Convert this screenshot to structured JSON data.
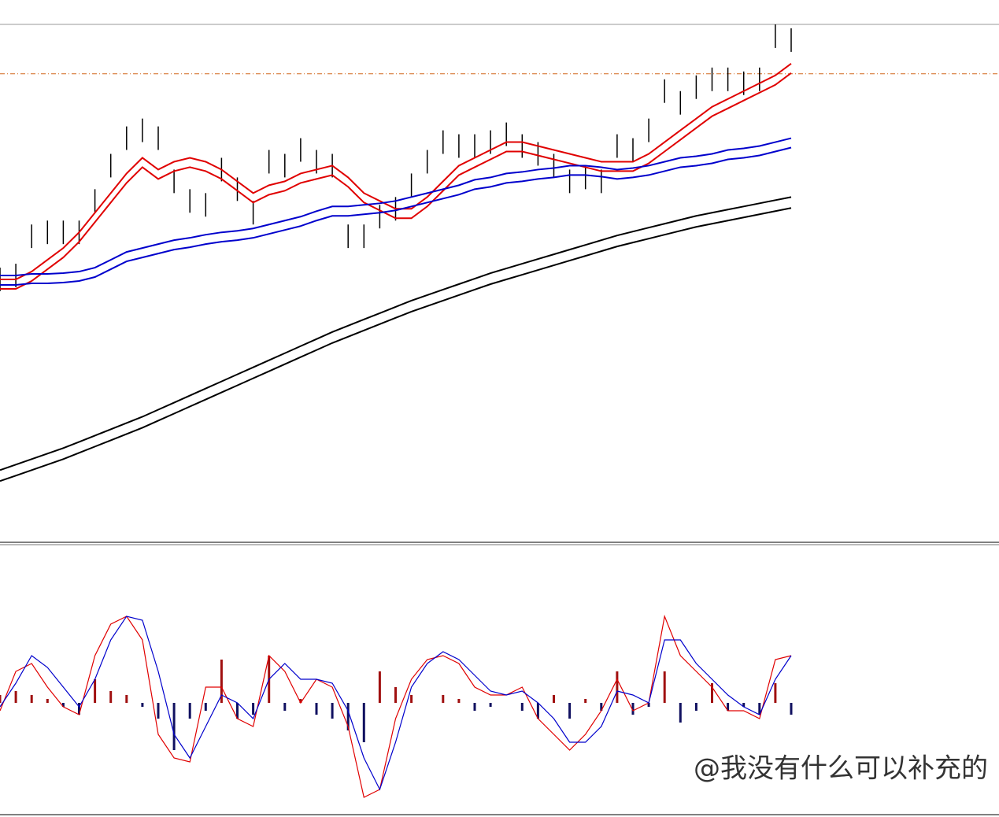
{
  "watermark": "@我没有什么可以补充的",
  "chart_data": [
    {
      "type": "price",
      "ylim": [
        0,
        660
      ],
      "bars": {
        "color": "#000000",
        "high": [
          350,
          355,
          405,
          410,
          410,
          410,
          450,
          495,
          530,
          540,
          530,
          475,
          450,
          445,
          490,
          465,
          435,
          500,
          495,
          515,
          500,
          495,
          405,
          405,
          430,
          440,
          470,
          500,
          525,
          520,
          520,
          525,
          535,
          520,
          510,
          495,
          475,
          480,
          475,
          520,
          515,
          540,
          590,
          575,
          595,
          605,
          605,
          600,
          605,
          660,
          655
        ],
        "low": [
          320,
          325,
          375,
          380,
          380,
          380,
          420,
          465,
          500,
          510,
          500,
          445,
          420,
          415,
          460,
          435,
          405,
          470,
          465,
          485,
          470,
          465,
          375,
          375,
          400,
          410,
          440,
          470,
          495,
          490,
          490,
          495,
          505,
          490,
          480,
          465,
          445,
          450,
          445,
          490,
          485,
          510,
          560,
          545,
          565,
          575,
          575,
          570,
          575,
          630,
          625
        ]
      },
      "series": [
        {
          "color": "#e00000",
          "values": [
            335,
            335,
            345,
            360,
            375,
            395,
            420,
            445,
            470,
            490,
            475,
            485,
            490,
            485,
            475,
            460,
            445,
            455,
            460,
            470,
            475,
            480,
            465,
            445,
            435,
            425,
            425,
            440,
            460,
            480,
            490,
            500,
            510,
            510,
            505,
            500,
            495,
            490,
            485,
            485,
            485,
            495,
            510,
            525,
            540,
            555,
            565,
            575,
            585,
            595,
            610
          ]
        },
        {
          "color": "#e00000",
          "values": [
            323,
            323,
            333,
            348,
            363,
            383,
            408,
            433,
            458,
            478,
            463,
            473,
            478,
            473,
            463,
            448,
            433,
            443,
            448,
            458,
            463,
            468,
            453,
            433,
            423,
            413,
            413,
            428,
            448,
            468,
            478,
            488,
            498,
            498,
            493,
            488,
            483,
            478,
            473,
            473,
            473,
            483,
            498,
            513,
            528,
            543,
            553,
            563,
            573,
            583,
            598
          ]
        },
        {
          "color": "#0000cc",
          "values": [
            340,
            340,
            342,
            342,
            343,
            345,
            350,
            360,
            370,
            375,
            380,
            385,
            388,
            392,
            395,
            397,
            400,
            405,
            410,
            415,
            422,
            428,
            428,
            430,
            432,
            435,
            440,
            445,
            450,
            455,
            462,
            465,
            470,
            472,
            475,
            477,
            480,
            480,
            478,
            475,
            477,
            480,
            485,
            490,
            492,
            495,
            500,
            502,
            505,
            510,
            515
          ]
        },
        {
          "color": "#0000cc",
          "values": [
            328,
            328,
            330,
            330,
            331,
            333,
            338,
            348,
            358,
            363,
            368,
            373,
            376,
            380,
            383,
            385,
            388,
            393,
            398,
            403,
            410,
            416,
            416,
            418,
            420,
            423,
            428,
            433,
            438,
            443,
            450,
            453,
            458,
            460,
            463,
            465,
            468,
            468,
            466,
            463,
            465,
            468,
            473,
            478,
            480,
            483,
            488,
            490,
            493,
            498,
            503
          ]
        },
        {
          "color": "#000000",
          "values": [
            92,
            99,
            106,
            113,
            120,
            128,
            136,
            144,
            152,
            160,
            169,
            178,
            187,
            196,
            205,
            214,
            223,
            232,
            241,
            250,
            259,
            268,
            276,
            284,
            292,
            300,
            308,
            315,
            322,
            329,
            336,
            343,
            349,
            355,
            361,
            367,
            373,
            379,
            385,
            391,
            396,
            401,
            406,
            411,
            416,
            420,
            424,
            428,
            432,
            436,
            440
          ]
        },
        {
          "color": "#000000",
          "values": [
            78,
            85,
            92,
            99,
            106,
            114,
            122,
            130,
            138,
            146,
            155,
            164,
            173,
            182,
            191,
            200,
            209,
            218,
            227,
            236,
            245,
            254,
            262,
            270,
            278,
            286,
            294,
            301,
            308,
            315,
            322,
            329,
            335,
            341,
            347,
            353,
            359,
            365,
            371,
            377,
            382,
            387,
            392,
            397,
            402,
            406,
            410,
            414,
            418,
            422,
            426
          ]
        }
      ],
      "reference_line": {
        "value": 597,
        "color": "#d2691e"
      }
    },
    {
      "type": "macd",
      "ylim": [
        -140,
        140
      ],
      "histogram": {
        "up_color": "#a01010",
        "down_color": "#101060",
        "values": [
          10,
          15,
          10,
          5,
          -5,
          -15,
          30,
          15,
          10,
          -5,
          -20,
          -60,
          -20,
          -10,
          55,
          -20,
          -15,
          60,
          -10,
          5,
          -15,
          -20,
          -35,
          -50,
          40,
          20,
          10,
          0,
          10,
          5,
          -10,
          -5,
          0,
          -10,
          -20,
          10,
          -20,
          5,
          -10,
          40,
          -15,
          -5,
          40,
          -25,
          -10,
          25,
          -10,
          -5,
          -15,
          25,
          -15
        ]
      },
      "series": [
        {
          "color": "#e00000",
          "values": [
            -10,
            40,
            50,
            20,
            -5,
            -15,
            60,
            100,
            110,
            80,
            -40,
            -70,
            -75,
            20,
            20,
            -20,
            -30,
            60,
            40,
            0,
            30,
            20,
            -30,
            -120,
            -110,
            -20,
            30,
            55,
            60,
            50,
            20,
            10,
            10,
            20,
            -20,
            -40,
            -60,
            -40,
            -10,
            30,
            -10,
            0,
            110,
            60,
            40,
            20,
            -10,
            -10,
            -20,
            55,
            60
          ]
        },
        {
          "color": "#0000cc",
          "values": [
            -5,
            25,
            60,
            45,
            20,
            -5,
            30,
            80,
            110,
            105,
            40,
            -40,
            -70,
            -30,
            10,
            0,
            -20,
            30,
            50,
            30,
            30,
            25,
            -10,
            -70,
            -110,
            -50,
            20,
            50,
            65,
            55,
            35,
            15,
            10,
            15,
            0,
            -20,
            -50,
            -50,
            -30,
            15,
            10,
            0,
            80,
            80,
            50,
            30,
            10,
            -5,
            -15,
            30,
            60
          ]
        }
      ]
    }
  ]
}
